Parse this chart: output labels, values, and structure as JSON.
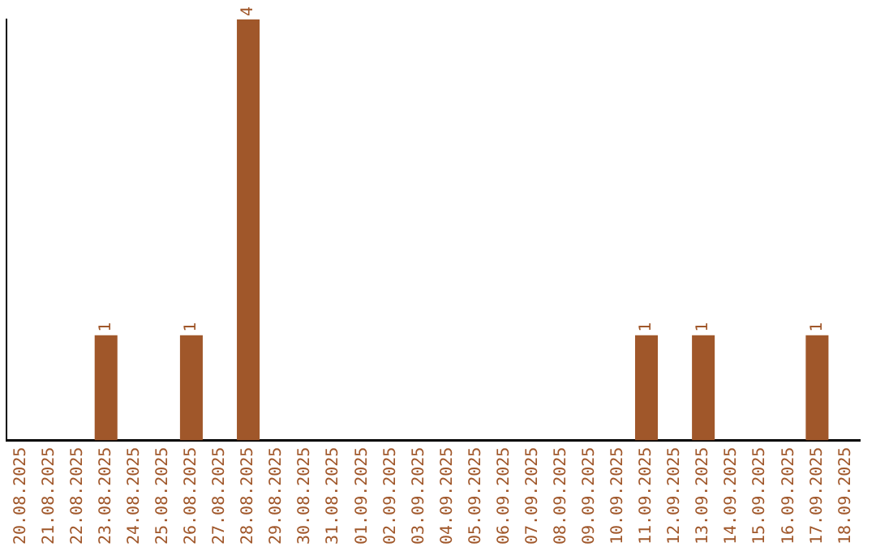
{
  "chart_data": {
    "type": "bar",
    "categories": [
      "20.08.2025",
      "21.08.2025",
      "22.08.2025",
      "23.08.2025",
      "24.08.2025",
      "25.08.2025",
      "26.08.2025",
      "27.08.2025",
      "28.08.2025",
      "29.08.2025",
      "30.08.2025",
      "31.08.2025",
      "01.09.2025",
      "02.09.2025",
      "03.09.2025",
      "04.09.2025",
      "05.09.2025",
      "06.09.2025",
      "07.09.2025",
      "08.09.2025",
      "09.09.2025",
      "10.09.2025",
      "11.09.2025",
      "12.09.2025",
      "13.09.2025",
      "14.09.2025",
      "15.09.2025",
      "16.09.2025",
      "17.09.2025",
      "18.09.2025"
    ],
    "values": [
      0,
      0,
      0,
      1,
      0,
      0,
      1,
      0,
      4,
      0,
      0,
      0,
      0,
      0,
      0,
      0,
      0,
      0,
      0,
      0,
      0,
      0,
      1,
      0,
      1,
      0,
      0,
      0,
      1,
      0
    ],
    "value_labels": [
      null,
      null,
      null,
      "1",
      null,
      null,
      "1",
      null,
      "4",
      null,
      null,
      null,
      null,
      null,
      null,
      null,
      null,
      null,
      null,
      null,
      null,
      null,
      "1",
      null,
      "1",
      null,
      null,
      null,
      "1",
      null
    ],
    "color": "#a0572a",
    "tick_labels": "x",
    "grid": false,
    "legend": false
  }
}
